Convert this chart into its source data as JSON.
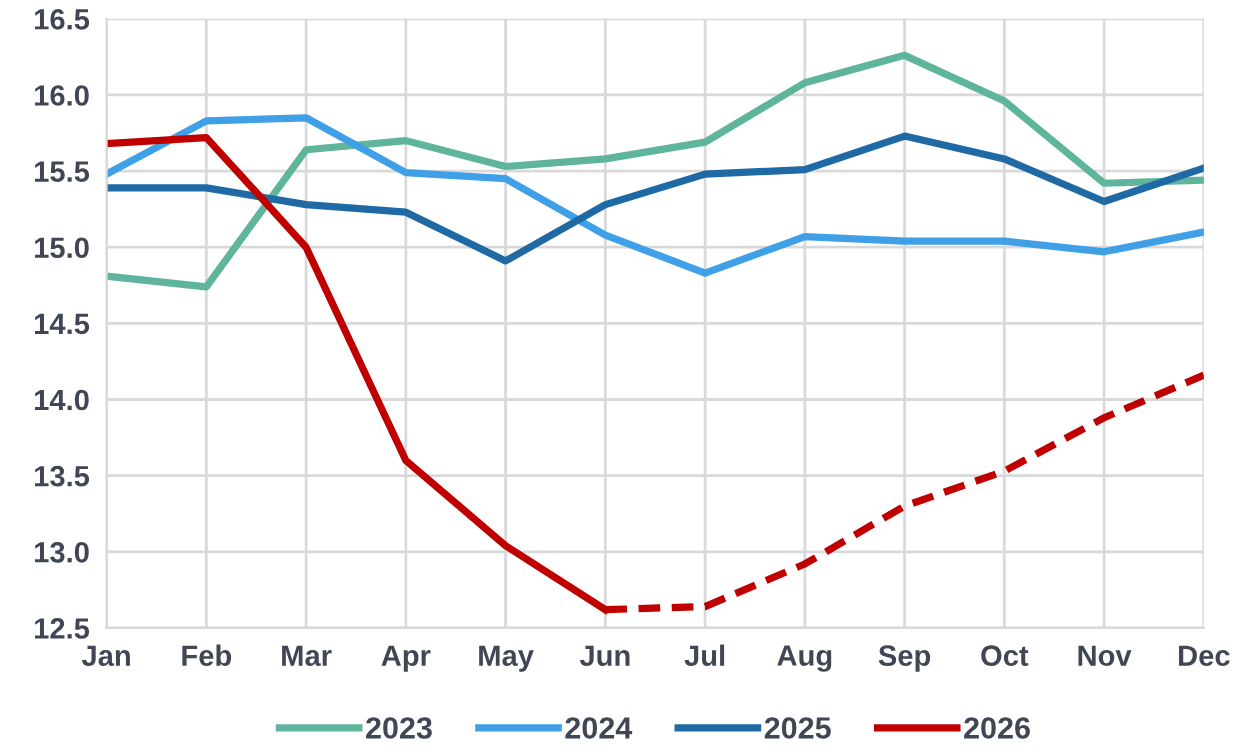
{
  "chart_data": {
    "type": "line",
    "categories": [
      "Jan",
      "Feb",
      "Mar",
      "Apr",
      "May",
      "Jun",
      "Jul",
      "Aug",
      "Sep",
      "Oct",
      "Nov",
      "Dec"
    ],
    "series": [
      {
        "name": "2023",
        "color": "#5fb49c",
        "values": [
          14.81,
          14.74,
          15.64,
          15.7,
          15.53,
          15.58,
          15.69,
          16.08,
          16.26,
          15.96,
          15.42,
          15.44
        ]
      },
      {
        "name": "2024",
        "color": "#3fa0e8",
        "values": [
          15.48,
          15.83,
          15.85,
          15.49,
          15.45,
          15.08,
          14.83,
          15.07,
          15.04,
          15.04,
          14.97,
          15.1
        ]
      },
      {
        "name": "2025",
        "color": "#1f6aa5",
        "values": [
          15.39,
          15.39,
          15.28,
          15.23,
          14.91,
          15.28,
          15.48,
          15.51,
          15.73,
          15.58,
          15.3,
          15.52
        ]
      },
      {
        "name": "2026",
        "color": "#c00000",
        "values": [
          15.68,
          15.72,
          15.0,
          13.6,
          13.04,
          12.62,
          null,
          null,
          null,
          null,
          null,
          null
        ]
      },
      {
        "color": "#c00000",
        "line_style": "dashed",
        "values": [
          null,
          null,
          null,
          null,
          null,
          12.62,
          12.64,
          12.92,
          13.3,
          13.53,
          13.88,
          14.16
        ]
      }
    ],
    "ylim": [
      12.5,
      16.5
    ],
    "yticks": [
      {
        "value": 12.5,
        "label": "12.5"
      },
      {
        "value": 13,
        "label": "13.0"
      },
      {
        "value": 13.5,
        "label": "13.5"
      },
      {
        "value": 14,
        "label": "14.0"
      },
      {
        "value": 14.5,
        "label": "14.5"
      },
      {
        "value": 15,
        "label": "15.0"
      },
      {
        "value": 15.5,
        "label": "15.5"
      },
      {
        "value": 16,
        "label": "16.0"
      },
      {
        "value": 16.5,
        "label": "16.5"
      }
    ],
    "grid": true,
    "legend": "bottom",
    "marker": "none",
    "line_style": "solid"
  }
}
